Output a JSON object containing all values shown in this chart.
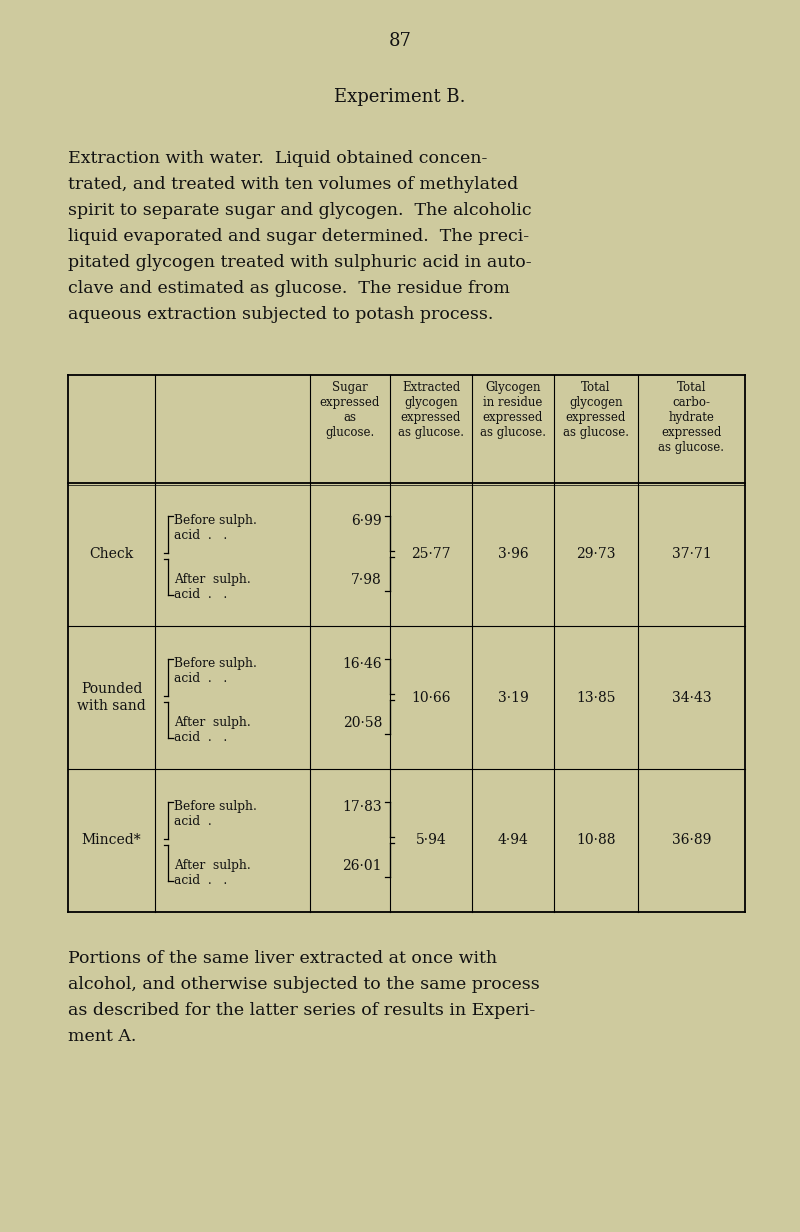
{
  "bg_color": "#ceca9e",
  "text_color": "#111111",
  "page_number": "87",
  "title": "Experiment B.",
  "paragraph1_lines": [
    "Extraction with water.  Liquid obtained concen-",
    "trated, and treated with ten volumes of methylated",
    "spirit to separate sugar and glycogen.  The alcoholic",
    "liquid evaporated and sugar determined.  The preci-",
    "pitated glycogen treated with sulphuric acid in auto-",
    "clave and estimated as glucose.  The residue from",
    "aqueous extraction subjected to potash process."
  ],
  "col_headers": [
    "Sugar\nexpressed\nas\nglucose.",
    "Extracted\nglycogen\nexpressed\nas glucose.",
    "Glycogen\nin residue\nexpressed\nas glucose.",
    "Total\nglycogen\nexpressed\nas glucose.",
    "Total\ncarbo-\nhydrate\nexpressed\nas glucose."
  ],
  "rows": [
    {
      "label": "Check",
      "before": "Before sulph.\nacid  .   .",
      "after": "After  sulph.\nacid  .   .",
      "sugar_before": "6·99",
      "sugar_after": "7·98",
      "ext_glyc": "25·77",
      "glyc_res": "3·96",
      "tot_glyc": "29·73",
      "tot_carb": "37·71"
    },
    {
      "label": "Pounded\nwith sand",
      "before": "Before sulph.\nacid  .   .",
      "after": "After  sulph.\nacid  .   .",
      "sugar_before": "16·46",
      "sugar_after": "20·58",
      "ext_glyc": "10·66",
      "glyc_res": "3·19",
      "tot_glyc": "13·85",
      "tot_carb": "34·43"
    },
    {
      "label": "Minced*",
      "before": "Before sulph.\nacid  .",
      "after": "After  sulph.\nacid  .   .",
      "sugar_before": "17·83",
      "sugar_after": "26·01",
      "ext_glyc": "5·94",
      "glyc_res": "4·94",
      "tot_glyc": "10·88",
      "tot_carb": "36·89"
    }
  ],
  "paragraph2_lines": [
    "Portions of the same liver extracted at once with",
    "alcohol, and otherwise subjected to the same process",
    "as described for the latter series of results in Experi-",
    "ment A."
  ]
}
